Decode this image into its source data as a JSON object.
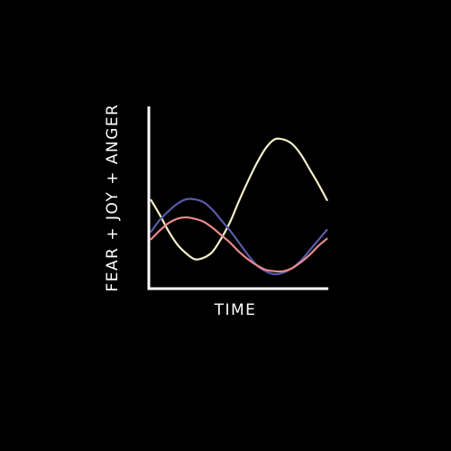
{
  "chart_data": {
    "type": "line",
    "title": "",
    "xlabel": "TIME",
    "ylabel": "FEAR + JOY + ANGER",
    "xlim": [
      0,
      100
    ],
    "ylim": [
      0,
      100
    ],
    "grid": false,
    "legend": "none",
    "series": [
      {
        "color": "#f2efc9",
        "x": [
          0,
          5,
          10,
          15,
          20,
          25,
          30,
          35,
          40,
          45,
          50,
          55,
          60,
          65,
          70,
          75,
          80,
          85,
          90,
          95,
          100
        ],
        "y": [
          50,
          40,
          29,
          20,
          14,
          10,
          11,
          15,
          24,
          35,
          49,
          62,
          74,
          84,
          90,
          90,
          87,
          80,
          70,
          60,
          49
        ]
      },
      {
        "color": "#5a5aa8",
        "x": [
          0,
          5,
          10,
          15,
          20,
          25,
          30,
          35,
          40,
          45,
          50,
          55,
          60,
          65,
          70,
          75,
          80,
          85,
          90,
          95,
          100
        ],
        "y": [
          28,
          36,
          42,
          47,
          50,
          50,
          48,
          43,
          36,
          29,
          21,
          13,
          6,
          2,
          0,
          1,
          4,
          9,
          16,
          23,
          30
        ]
      },
      {
        "color": "#e88a8a",
        "x": [
          0,
          5,
          10,
          15,
          20,
          25,
          30,
          35,
          40,
          45,
          50,
          55,
          60,
          65,
          70,
          75,
          80,
          85,
          90,
          95,
          100
        ],
        "y": [
          23,
          29,
          34,
          37,
          38,
          37,
          35,
          31,
          26,
          21,
          15,
          10,
          6,
          3,
          2,
          2,
          4,
          8,
          13,
          19,
          24
        ]
      }
    ]
  }
}
